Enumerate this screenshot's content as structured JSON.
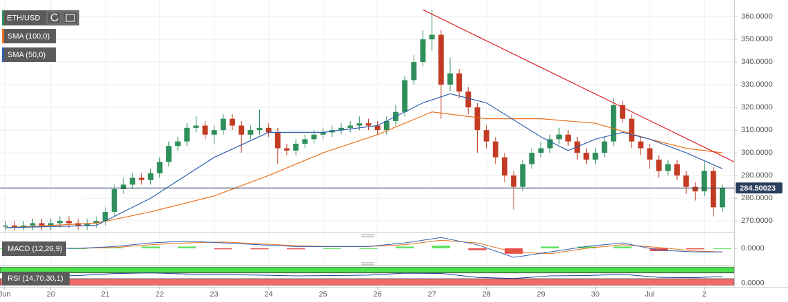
{
  "chart_data": [
    {
      "type": "candlestick",
      "title": "ETH/USD",
      "x": [
        1,
        2,
        3,
        4,
        5,
        6,
        7,
        8,
        9,
        10,
        11,
        12,
        13,
        14,
        15,
        16,
        17,
        18,
        19,
        20,
        21,
        22,
        23,
        24,
        25,
        26,
        27,
        28,
        29,
        30,
        31,
        32,
        33,
        34,
        35,
        36,
        37,
        38,
        39,
        40,
        41,
        42,
        43,
        44,
        45,
        46,
        47,
        48,
        49,
        50,
        51,
        52,
        53,
        54,
        55,
        56,
        57,
        58,
        59,
        60,
        61,
        62,
        63,
        64,
        65,
        66,
        67,
        68,
        69,
        70,
        71,
        72,
        73,
        74,
        75,
        76,
        77,
        78,
        79,
        80
      ],
      "open": [
        267.5,
        268,
        267,
        268,
        269,
        268,
        269,
        270,
        269,
        268,
        269,
        270,
        274,
        284,
        286,
        289,
        288,
        291,
        296,
        303,
        305,
        311,
        312,
        308,
        310,
        315,
        312,
        308,
        310,
        311,
        309,
        302,
        301,
        304,
        306,
        308,
        309,
        310,
        311,
        312,
        313,
        312,
        310,
        314,
        318,
        332,
        340,
        350,
        352,
        330,
        335,
        327,
        320,
        310,
        305,
        298,
        290,
        285,
        295,
        300,
        302,
        306,
        308,
        305,
        300,
        297,
        300,
        305,
        321,
        315,
        305,
        302,
        297,
        292,
        295,
        290,
        285,
        283,
        292,
        276
      ],
      "high": [
        270,
        270,
        270,
        271,
        271,
        271,
        272,
        272,
        271,
        271,
        272,
        276,
        286,
        289,
        291,
        291,
        293,
        298,
        305,
        307,
        313,
        316,
        314,
        312,
        317,
        317,
        314,
        312,
        319,
        313,
        311,
        304,
        306,
        308,
        310,
        311,
        312,
        313,
        314,
        316,
        315,
        314,
        316,
        321,
        334,
        343,
        354,
        363,
        354,
        342,
        337,
        329,
        322,
        312,
        307,
        300,
        292,
        297,
        302,
        305,
        308,
        311,
        310,
        307,
        302,
        302,
        307,
        324,
        323,
        317,
        307,
        304,
        299,
        297,
        297,
        292,
        287,
        296,
        294,
        286
      ],
      "low": [
        265.5,
        265,
        265,
        266,
        266,
        266,
        267,
        267,
        266,
        266,
        267,
        268,
        272,
        282,
        284,
        286,
        286,
        289,
        294,
        301,
        303,
        309,
        306,
        304,
        308,
        310,
        300,
        306,
        308,
        307,
        295,
        299,
        299,
        302,
        304,
        306,
        307,
        308,
        309,
        310,
        310,
        308,
        308,
        312,
        316,
        330,
        338,
        345,
        315,
        327,
        324,
        317,
        300,
        302,
        295,
        287,
        275,
        283,
        293,
        298,
        300,
        304,
        303,
        297,
        295,
        295,
        298,
        303,
        313,
        302,
        299,
        293,
        289,
        290,
        288,
        282,
        279,
        281,
        272,
        274
      ],
      "close": [
        268,
        267,
        268,
        269,
        268,
        269,
        270,
        269,
        268,
        269,
        270,
        274,
        284,
        286,
        289,
        288,
        291,
        296,
        303,
        305,
        311,
        312,
        308,
        310,
        315,
        312,
        308,
        310,
        311,
        309,
        302,
        301,
        304,
        306,
        308,
        309,
        310,
        311,
        312,
        313,
        312,
        310,
        314,
        318,
        332,
        340,
        350,
        352,
        330,
        335,
        327,
        320,
        310,
        305,
        298,
        290,
        285,
        295,
        300,
        302,
        306,
        308,
        305,
        300,
        297,
        300,
        305,
        321,
        315,
        305,
        302,
        297,
        292,
        295,
        290,
        285,
        283,
        292,
        276,
        284.5
      ],
      "up_color": "#2f8f5b",
      "down_color": "#c23b22",
      "series": [
        {
          "name": "SMA (100,0)",
          "color": "#e8701a",
          "x": [
            1,
            11,
            17,
            24,
            30,
            36,
            42,
            48,
            54,
            60,
            66,
            72,
            76,
            80
          ],
          "values": [
            267,
            269,
            274,
            281,
            290,
            300,
            308,
            318,
            315,
            315,
            313,
            306,
            302,
            300
          ]
        },
        {
          "name": "SMA (50,0)",
          "color": "#2f5fb0",
          "x": [
            1,
            11,
            17,
            24,
            30,
            36,
            42,
            47,
            50,
            54,
            60,
            63,
            66,
            69,
            72,
            76,
            80
          ],
          "values": [
            267,
            268,
            280,
            298,
            309,
            309,
            312,
            322,
            326,
            322,
            307,
            301,
            306,
            309,
            306,
            300,
            293
          ]
        }
      ],
      "trendline": {
        "color": "#e0202a",
        "x": [
          47,
          81.3
        ],
        "values": [
          363,
          296
        ]
      },
      "last_price": 284.50023,
      "xlim": [
        0.4,
        81.3
      ],
      "ylim": [
        265.8,
        365.8
      ],
      "xticks": [
        {
          "value": 0.9,
          "label": "Jun"
        },
        {
          "value": 6,
          "label": "20"
        },
        {
          "value": 12,
          "label": "21"
        },
        {
          "value": 18,
          "label": "22"
        },
        {
          "value": 24,
          "label": "23"
        },
        {
          "value": 30,
          "label": "24"
        },
        {
          "value": 36,
          "label": "25"
        },
        {
          "value": 42,
          "label": "26"
        },
        {
          "value": 48,
          "label": "27"
        },
        {
          "value": 54,
          "label": "28"
        },
        {
          "value": 60,
          "label": "29"
        },
        {
          "value": 66,
          "label": "30"
        },
        {
          "value": 72,
          "label": "Jul"
        },
        {
          "value": 78,
          "label": "2"
        }
      ],
      "yticks": [
        {
          "value": 270,
          "label": "270.0000"
        },
        {
          "value": 280,
          "label": "280.0000"
        },
        {
          "value": 290,
          "label": "290.0000"
        },
        {
          "value": 300,
          "label": "300.0000"
        },
        {
          "value": 310,
          "label": "310.0000"
        },
        {
          "value": 320,
          "label": "320.0000"
        },
        {
          "value": 330,
          "label": "330.0000"
        },
        {
          "value": 340,
          "label": "340.0000"
        },
        {
          "value": 350,
          "label": "350.0000"
        },
        {
          "value": 360,
          "label": "360.0000"
        }
      ],
      "grid": true
    },
    {
      "type": "macd",
      "title": "MACD (12,26,9)",
      "x": [
        1,
        5,
        9,
        13,
        17,
        21,
        25,
        29,
        33,
        37,
        41,
        45,
        49,
        53,
        57,
        61,
        65,
        69,
        73,
        77,
        80
      ],
      "macd": {
        "color": "#2f5fb0",
        "values": [
          0,
          0,
          0,
          1,
          3,
          4,
          3,
          2,
          1,
          1,
          1,
          3,
          6,
          2,
          -5,
          -2,
          1,
          3,
          -1,
          -2,
          -2
        ]
      },
      "signal": {
        "color": "#e8701a",
        "values": [
          0,
          0,
          0,
          0.5,
          2,
          3,
          3.5,
          2.5,
          1.5,
          1,
          1,
          2,
          4.5,
          3,
          -2,
          -3,
          0,
          2,
          0.5,
          -1.5,
          -2
        ]
      },
      "histogram": {
        "up_color": "#3ddc3d",
        "down_color": "#e02020",
        "values": [
          0,
          0,
          0,
          0.5,
          1,
          1,
          -0.5,
          -0.5,
          -0.5,
          0,
          0,
          1,
          1.5,
          -1,
          -3,
          1,
          1,
          1,
          -1.5,
          -0.5,
          0
        ]
      },
      "xlim": [
        0.4,
        81.3
      ],
      "ylim": [
        -8,
        8
      ],
      "yticks": [
        {
          "value": 0,
          "label": "0.0000"
        }
      ]
    },
    {
      "type": "rsi",
      "title": "RSI (14,70,30,1)",
      "x": [
        1,
        5,
        9,
        13,
        17,
        21,
        25,
        29,
        33,
        37,
        41,
        45,
        49,
        53,
        57,
        61,
        65,
        69,
        73,
        77,
        80
      ],
      "values": [
        50,
        48,
        52,
        65,
        70,
        62,
        58,
        55,
        50,
        52,
        55,
        68,
        66,
        40,
        32,
        50,
        52,
        60,
        40,
        38,
        45
      ],
      "color": "#1f3f8f",
      "levels": [
        30,
        70
      ],
      "band_colors": [
        "#f26b6b",
        "#4ee04e"
      ],
      "xlim": [
        0.4,
        81.3
      ],
      "ylim": [
        -15,
        110
      ],
      "yticks": [
        {
          "value": 0,
          "label": "0.0000"
        }
      ]
    }
  ]
}
